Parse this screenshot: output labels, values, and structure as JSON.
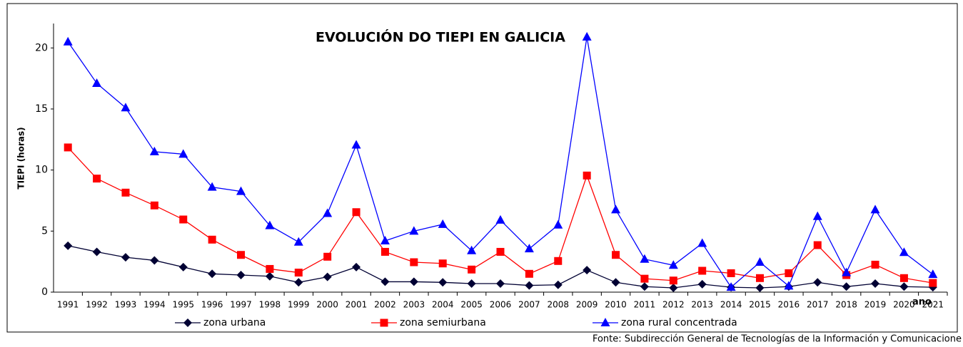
{
  "chart_data": {
    "type": "line",
    "title": "EVOLUCIÓN DO TIEPI EN GALICIA",
    "y_label": "TIEPI (horas)",
    "x_label": "ano",
    "source": "Fonte: Subdirección General de Tecnologías de la Información y Comunicacione",
    "categories": [
      "1991",
      "1992",
      "1993",
      "1994",
      "1995",
      "1996",
      "1997",
      "1998",
      "1999",
      "2000",
      "2001",
      "2002",
      "2003",
      "2004",
      "2005",
      "2006",
      "2007",
      "2008",
      "2009",
      "2010",
      "2011",
      "2012",
      "2013",
      "2014",
      "2015",
      "2016",
      "2017",
      "2018",
      "2019",
      "2020",
      "2021"
    ],
    "series": [
      {
        "name": "zona urbana",
        "color": "#000033",
        "marker": "diamond",
        "values": [
          3.8,
          3.3,
          2.85,
          2.6,
          2.05,
          1.5,
          1.4,
          1.3,
          0.8,
          1.25,
          2.05,
          0.85,
          0.85,
          0.8,
          0.7,
          0.7,
          0.55,
          0.6,
          1.8,
          0.8,
          0.45,
          0.35,
          0.65,
          0.4,
          0.35,
          0.45,
          0.8,
          0.45,
          0.7,
          0.45,
          0.4
        ]
      },
      {
        "name": "zona semiurbana",
        "color": "#ff0000",
        "marker": "square",
        "values": [
          11.85,
          9.3,
          8.15,
          7.1,
          5.95,
          4.3,
          3.05,
          1.9,
          1.6,
          2.9,
          6.55,
          3.3,
          2.45,
          2.35,
          1.85,
          3.3,
          1.5,
          2.55,
          9.55,
          3.05,
          1.1,
          0.95,
          1.75,
          1.55,
          1.15,
          1.55,
          3.85,
          1.4,
          2.25,
          1.15,
          0.75
        ]
      },
      {
        "name": "zona rural concentrada",
        "color": "#0000ff",
        "marker": "triangle",
        "values": [
          20.5,
          17.1,
          15.1,
          11.5,
          11.3,
          8.6,
          8.25,
          5.45,
          4.1,
          6.45,
          12.05,
          4.2,
          5.0,
          5.55,
          3.4,
          5.9,
          3.55,
          5.5,
          20.9,
          6.75,
          2.7,
          2.2,
          4.0,
          0.4,
          2.45,
          0.5,
          6.2,
          1.6,
          6.75,
          3.25,
          1.45
        ]
      }
    ],
    "ylim": [
      0,
      22
    ],
    "yticks": [
      0,
      5,
      10,
      15,
      20
    ],
    "grid": false,
    "legend": "bottom"
  }
}
